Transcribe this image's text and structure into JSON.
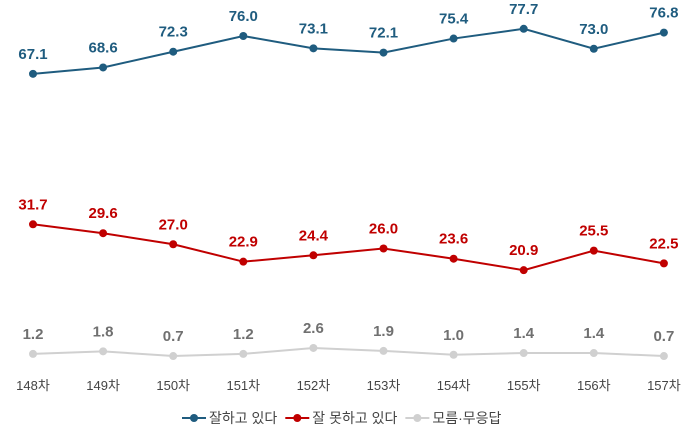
{
  "chart_data": {
    "type": "line",
    "categories": [
      "148차",
      "149차",
      "150차",
      "151차",
      "152차",
      "153차",
      "154차",
      "155차",
      "156차",
      "157차"
    ],
    "ylim": [
      0,
      80
    ],
    "grid": false,
    "legend_placement": "bottom",
    "series": [
      {
        "name": "잘하고 있다",
        "color": "#1f5c7f",
        "values": [
          67.1,
          68.6,
          72.3,
          76.0,
          73.1,
          72.1,
          75.4,
          77.7,
          73.0,
          76.8
        ]
      },
      {
        "name": "잘 못하고 있다",
        "color": "#c00000",
        "values": [
          31.7,
          29.6,
          27.0,
          22.9,
          24.4,
          26.0,
          23.6,
          20.9,
          25.5,
          22.5
        ]
      },
      {
        "name": "모름·무응답",
        "color": "#d0d0d0",
        "label_color": "#707070",
        "values": [
          1.2,
          1.8,
          0.7,
          1.2,
          2.6,
          1.9,
          1.0,
          1.4,
          1.4,
          0.7
        ]
      }
    ]
  }
}
